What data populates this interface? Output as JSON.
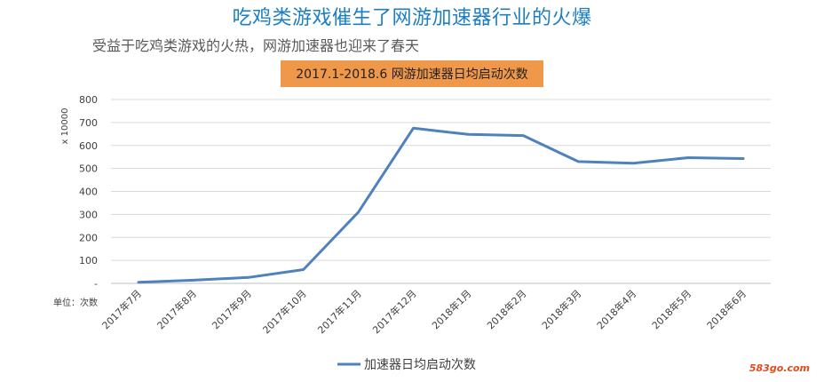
{
  "header": {
    "title": "吃鸡类游戏催生了网游加速器行业的火爆",
    "subtitle": "受益于吃鸡类游戏的火热，网游加速器也迎来了春天"
  },
  "watermark": "583go.com",
  "chart_data": {
    "type": "line",
    "title": "2017.1-2018.6 网游加速器日均启动次数",
    "ylabel": "x 10000",
    "unit_label": "单位：次数",
    "categories": [
      "2017年7月",
      "2017年8月",
      "2017年9月",
      "2017年10月",
      "2017年11月",
      "2017年12月",
      "2018年1月",
      "2018年2月",
      "2018年3月",
      "2018年4月",
      "2018年5月",
      "2018年6月"
    ],
    "series": [
      {
        "name": "加速器日均启动次数",
        "values": [
          5,
          14,
          26,
          60,
          310,
          675,
          648,
          643,
          530,
          523,
          547,
          543
        ]
      }
    ],
    "ylim": [
      0,
      800
    ],
    "yticks": [
      "-",
      "100",
      "200",
      "300",
      "400",
      "500",
      "600",
      "700",
      "800"
    ],
    "grid": true,
    "legend": "bottom",
    "line_color": "#4f81bd"
  }
}
